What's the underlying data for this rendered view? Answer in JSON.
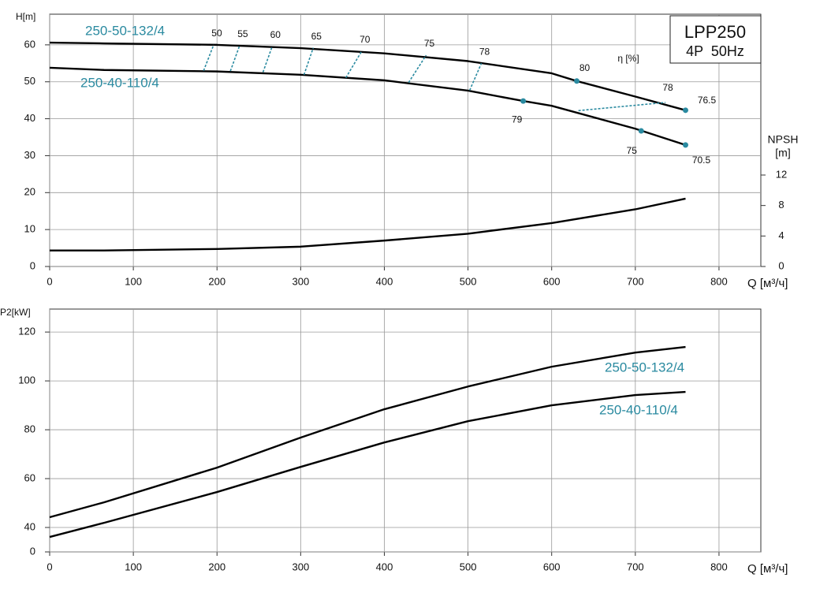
{
  "chart_data": [
    {
      "type": "line",
      "title": "LPP250",
      "subtitle": "4P  50Hz",
      "ylabel": "H[m]",
      "y2label": [
        "NPSH",
        "[m]"
      ],
      "xlabel": "Q [м³/ч]",
      "xlim": [
        0,
        850
      ],
      "xticks": [
        0,
        100,
        200,
        300,
        400,
        500,
        600,
        700,
        800
      ],
      "ylim": [
        0,
        68.3
      ],
      "yticks": [
        0,
        10,
        20,
        30,
        40,
        50,
        60
      ],
      "y2lim": [
        0,
        33.1
      ],
      "y2ticks": [
        0,
        4,
        8,
        12
      ],
      "grid": true,
      "label_color": "#2a8aa0",
      "series": [
        {
          "name": "250-50-132/4",
          "color": "#000000",
          "x": [
            0,
            65,
            200,
            300,
            400,
            500,
            600,
            630,
            700,
            760
          ],
          "values": [
            60.6,
            60.4,
            60,
            59.1,
            57.7,
            55.6,
            52.3,
            50.2,
            46.0,
            42.3
          ]
        },
        {
          "name": "250-40-110/4",
          "color": "#000000",
          "x": [
            0,
            65,
            200,
            300,
            400,
            500,
            566,
            600,
            700,
            760
          ],
          "values": [
            53.8,
            53.2,
            52.8,
            51.9,
            50.4,
            47.6,
            44.8,
            43.5,
            37.3,
            32.9
          ]
        },
        {
          "color": "#000000",
          "axis": "y2",
          "x": [
            0,
            65,
            200,
            300,
            400,
            500,
            600,
            700,
            760
          ],
          "values": [
            2.1,
            2.1,
            2.3,
            2.6,
            3.4,
            4.3,
            5.7,
            7.5,
            8.9
          ]
        }
      ],
      "efficiency": {
        "label": "η [%]",
        "color": "#2a8aa0",
        "contours": [
          {
            "eta": 50,
            "x": [
              184,
              196
            ],
            "values": [
              53.0,
              60.0
            ]
          },
          {
            "eta": 55,
            "x": [
              216,
              227
            ],
            "values": [
              52.9,
              59.8
            ]
          },
          {
            "eta": 60,
            "x": [
              255,
              266
            ],
            "values": [
              52.6,
              59.6
            ]
          },
          {
            "eta": 65,
            "x": [
              304,
              315
            ],
            "values": [
              51.9,
              59.2
            ]
          },
          {
            "eta": 70,
            "x": [
              354,
              373
            ],
            "values": [
              51.1,
              58.3
            ]
          },
          {
            "eta": 75,
            "x": [
              429,
              450
            ],
            "values": [
              49.8,
              57.2
            ]
          },
          {
            "eta": 78,
            "x": [
              502,
              516
            ],
            "values": [
              47.7,
              55.0
            ]
          },
          {
            "eta": 78,
            "x": [
              632,
              736
            ],
            "values": [
              42.2,
              44.4
            ]
          }
        ],
        "points": [
          {
            "x": 630,
            "value": 50.2,
            "eta": 80
          },
          {
            "x": 760,
            "value": 42.3,
            "eta": 76.5
          },
          {
            "x": 566,
            "value": 44.8,
            "eta": 79
          },
          {
            "x": 707,
            "value": 36.7,
            "eta": 75
          },
          {
            "x": 760,
            "value": 32.9,
            "eta": 70.5
          }
        ]
      }
    },
    {
      "type": "line",
      "ylabel": "P2[kW]",
      "xlabel": "Q [м³/ч]",
      "xlim": [
        0,
        850
      ],
      "xticks": [
        0,
        100,
        200,
        300,
        400,
        500,
        600,
        700,
        800
      ],
      "ylim": [
        0,
        129.4
      ],
      "ybreak": [
        0,
        30
      ],
      "yticks": [
        0,
        40,
        60,
        80,
        100,
        120
      ],
      "grid": true,
      "label_color": "#2a8aa0",
      "series": [
        {
          "name": "250-50-132/4",
          "color": "#000000",
          "x": [
            0,
            65,
            200,
            300,
            400,
            500,
            600,
            700,
            760
          ],
          "values": [
            44.2,
            50.3,
            64.5,
            76.8,
            88.4,
            97.7,
            105.8,
            111.6,
            113.9
          ]
        },
        {
          "name": "250-40-110/4",
          "color": "#000000",
          "x": [
            0,
            65,
            200,
            300,
            400,
            500,
            600,
            700,
            760
          ],
          "values": [
            36.1,
            41.9,
            54.5,
            64.8,
            74.8,
            83.5,
            90,
            94.2,
            95.5
          ]
        }
      ]
    }
  ]
}
